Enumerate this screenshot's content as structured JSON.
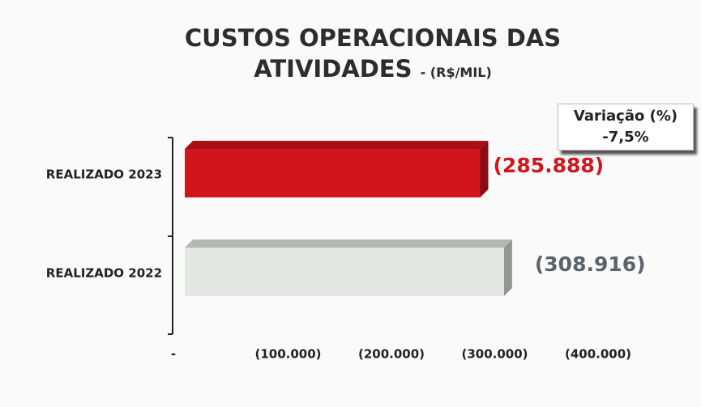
{
  "chart_data": {
    "type": "bar",
    "orientation": "horizontal",
    "title": "CUSTOS OPERACIONAIS DAS ATIVIDADES",
    "subtitle": "- (R$/MIL)",
    "annotation": {
      "label": "Variação (%)",
      "value": "-7,5%"
    },
    "categories": [
      "REALIZADO 2023",
      "REALIZADO 2022"
    ],
    "values": [
      -285888,
      -308916
    ],
    "value_labels": [
      "(285.888)",
      "(308.916)"
    ],
    "colors": [
      "#d2141c",
      "#e4e6e4"
    ],
    "label_colors": [
      "#d2141c",
      "#5b626a"
    ],
    "xlim": [
      0,
      -400000
    ],
    "xticks": [
      {
        "value": 0,
        "label": "-"
      },
      {
        "value": -100000,
        "label": "(100.000)"
      },
      {
        "value": -200000,
        "label": "(200.000)"
      },
      {
        "value": -300000,
        "label": "(300.000)"
      },
      {
        "value": -400000,
        "label": "(400.000)"
      }
    ],
    "grid": false
  }
}
